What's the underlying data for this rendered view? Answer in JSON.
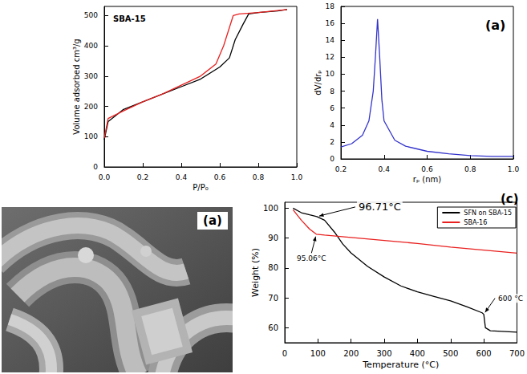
{
  "chart_data": [
    {
      "type": "line",
      "title": "SBA-15",
      "x_label": "P/P₀",
      "y_label": "Volume adsorbed cm³/g",
      "xlim": [
        0,
        1
      ],
      "ylim": [
        0,
        530
      ],
      "xticks": [
        {
          "value": 0,
          "label": "0.0"
        },
        0.2,
        0.4,
        0.6,
        0.8,
        {
          "value": 1,
          "label": "1.0"
        }
      ],
      "yticks": [
        0,
        100,
        200,
        300,
        400,
        500
      ],
      "grid": false,
      "series": [
        {
          "color": "#000000",
          "x": [
            0,
            0.02,
            0.1,
            0.2,
            0.3,
            0.4,
            0.5,
            0.6,
            0.65,
            0.68,
            0.72,
            0.75,
            0.8,
            0.9,
            0.95
          ],
          "values": [
            90,
            150,
            190,
            215,
            240,
            265,
            290,
            330,
            360,
            420,
            470,
            505,
            510,
            515,
            520
          ]
        },
        {
          "color": "#e8201f",
          "x": [
            0,
            0.02,
            0.1,
            0.2,
            0.3,
            0.4,
            0.5,
            0.58,
            0.62,
            0.67,
            0.7,
            0.8,
            0.95
          ],
          "values": [
            95,
            160,
            185,
            215,
            240,
            270,
            300,
            340,
            400,
            500,
            505,
            510,
            520
          ]
        }
      ]
    },
    {
      "type": "line",
      "panel_label": "(a)",
      "x_label": "rₚ (nm)",
      "y_label": "dV/drₚ",
      "xlim": [
        0.2,
        1
      ],
      "ylim": [
        0,
        18
      ],
      "xticks": [
        0.2,
        0.4,
        0.6,
        0.8,
        {
          "value": 1,
          "label": "1.0"
        }
      ],
      "yticks": [
        0,
        2,
        4,
        6,
        8,
        10,
        12,
        14,
        16,
        18
      ],
      "grid": false,
      "series": [
        {
          "color": "#3333cc",
          "x": [
            0.2,
            0.25,
            0.3,
            0.33,
            0.35,
            0.36,
            0.37,
            0.38,
            0.39,
            0.4,
            0.45,
            0.5,
            0.6,
            0.7,
            0.8,
            0.9,
            1.0
          ],
          "values": [
            1.4,
            1.8,
            2.8,
            4.5,
            8,
            12,
            16.5,
            12,
            7,
            4.5,
            2.2,
            1.5,
            0.9,
            0.6,
            0.4,
            0.3,
            0.3
          ]
        }
      ]
    },
    {
      "type": "image",
      "panel_label": "(a)"
    },
    {
      "type": "line",
      "panel_label": "(c)",
      "x_label": "Temperature (°C)",
      "y_label": "Weight (%)",
      "xlim": [
        0,
        700
      ],
      "ylim": [
        55,
        102
      ],
      "xticks": [
        0,
        100,
        200,
        300,
        400,
        500,
        600,
        700
      ],
      "yticks": [
        60,
        70,
        80,
        90,
        100
      ],
      "grid": false,
      "legend": "upper right",
      "series": [
        {
          "name": "SFN on SBA-15",
          "color": "#000000",
          "x": [
            25,
            50,
            75,
            96.71,
            120,
            150,
            175,
            200,
            250,
            300,
            350,
            400,
            450,
            500,
            550,
            595,
            600,
            605,
            620,
            700
          ],
          "values": [
            100,
            98.5,
            97.8,
            97.2,
            96,
            92,
            88,
            85,
            80.5,
            77,
            74,
            72,
            70.5,
            69,
            67,
            65,
            64.5,
            60,
            59,
            58.5
          ]
        },
        {
          "name": "SBA-16",
          "color": "#e8201f",
          "x": [
            25,
            50,
            75,
            95.06,
            120,
            200,
            300,
            400,
            500,
            600,
            700
          ],
          "values": [
            99.5,
            96,
            93,
            91.3,
            91,
            90.2,
            89.2,
            88.2,
            87,
            86,
            85
          ]
        }
      ],
      "annotations": [
        {
          "text": "96.71°C",
          "x": 96.71,
          "y": 97.2
        },
        {
          "text": "95.06°C",
          "x": 95.06,
          "y": 91.3
        },
        {
          "text": "600 °C",
          "x": 600,
          "y": 64.5
        }
      ]
    }
  ]
}
